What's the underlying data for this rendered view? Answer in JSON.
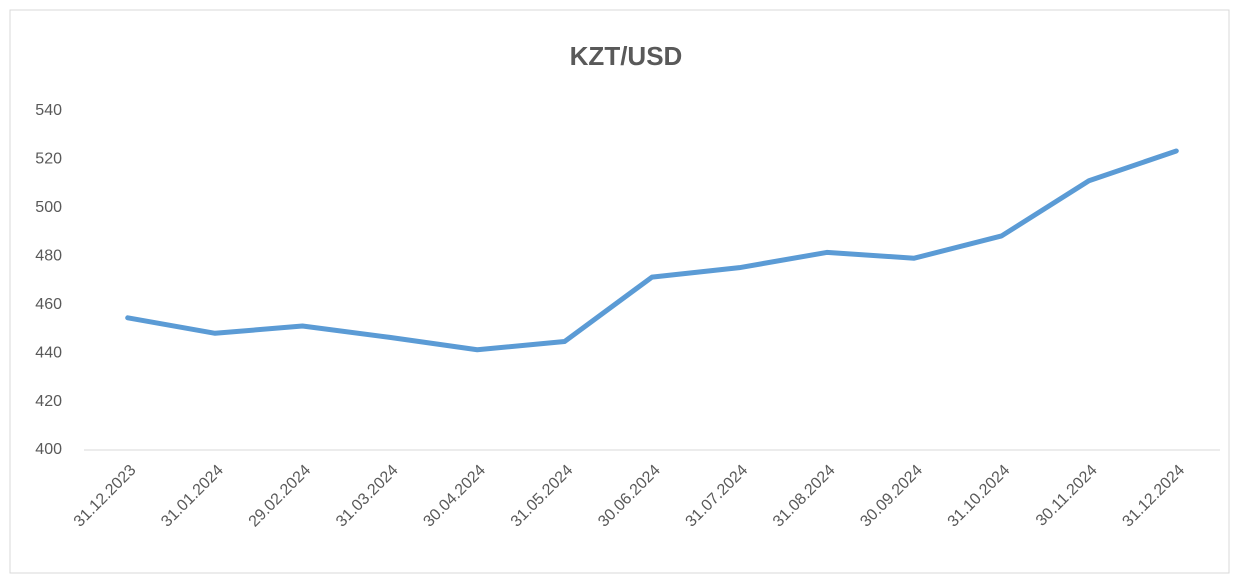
{
  "chart_data": {
    "type": "line",
    "title": "KZT/USD",
    "categories": [
      "31.12.2023",
      "31.01.2024",
      "29.02.2024",
      "31.03.2024",
      "30.04.2024",
      "31.05.2024",
      "30.06.2024",
      "31.07.2024",
      "31.08.2024",
      "30.09.2024",
      "31.10.2024",
      "30.11.2024",
      "31.12.2024"
    ],
    "values": [
      454.6,
      448.2,
      451.2,
      446.5,
      441.4,
      444.8,
      471.4,
      475.3,
      481.6,
      479.2,
      488.4,
      511.2,
      523.5
    ],
    "color": "#5b9bd5",
    "ylim": [
      400,
      540
    ],
    "yticks": [
      400,
      420,
      440,
      460,
      480,
      500,
      520,
      540
    ],
    "grid": false
  }
}
